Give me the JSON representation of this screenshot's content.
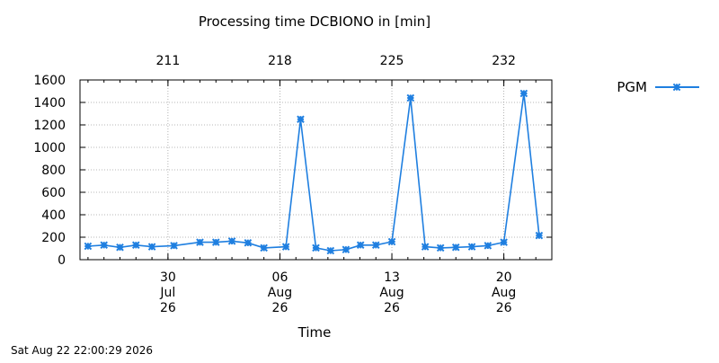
{
  "chart_data": {
    "type": "line",
    "title": "Processing time DCBIONO in [min]",
    "xlabel": "Time",
    "ylabel": "",
    "ylim": [
      0,
      1600
    ],
    "yticks": [
      0,
      200,
      400,
      600,
      800,
      1000,
      1200,
      1400,
      1600
    ],
    "xlim": [
      "2026-07-24T12:00",
      "2026-08-23T00:00"
    ],
    "x_ticks": [
      {
        "date": "2026-07-30",
        "lines": [
          "30",
          "Jul",
          "26"
        ]
      },
      {
        "date": "2026-08-06",
        "lines": [
          "06",
          "Aug",
          "26"
        ]
      },
      {
        "date": "2026-08-13",
        "lines": [
          "13",
          "Aug",
          "26"
        ]
      },
      {
        "date": "2026-08-20",
        "lines": [
          "20",
          "Aug",
          "26"
        ]
      }
    ],
    "top_axis_ticks": [
      {
        "date": "2026-07-30",
        "label": "211"
      },
      {
        "date": "2026-08-06",
        "label": "218"
      },
      {
        "date": "2026-08-13",
        "label": "225"
      },
      {
        "date": "2026-08-20",
        "label": "232"
      }
    ],
    "grid": true,
    "legend_position": "right",
    "series": [
      {
        "name": "PGM",
        "color": "#1f7fe0",
        "marker": "star",
        "points": [
          {
            "x": "2026-07-25T00:00",
            "y": 120
          },
          {
            "x": "2026-07-26T00:00",
            "y": 130
          },
          {
            "x": "2026-07-27T00:00",
            "y": 110
          },
          {
            "x": "2026-07-28T00:00",
            "y": 130
          },
          {
            "x": "2026-07-29T00:00",
            "y": 115
          },
          {
            "x": "2026-07-30T09:00",
            "y": 125
          },
          {
            "x": "2026-08-01T00:00",
            "y": 155
          },
          {
            "x": "2026-08-02T00:00",
            "y": 155
          },
          {
            "x": "2026-08-03T00:00",
            "y": 165
          },
          {
            "x": "2026-08-04T00:00",
            "y": 150
          },
          {
            "x": "2026-08-05T00:00",
            "y": 105
          },
          {
            "x": "2026-08-06T09:00",
            "y": 115
          },
          {
            "x": "2026-08-07T07:00",
            "y": 1250
          },
          {
            "x": "2026-08-08T06:00",
            "y": 105
          },
          {
            "x": "2026-08-09T04:00",
            "y": 80
          },
          {
            "x": "2026-08-10T03:00",
            "y": 90
          },
          {
            "x": "2026-08-11T01:00",
            "y": 130
          },
          {
            "x": "2026-08-12T00:00",
            "y": 130
          },
          {
            "x": "2026-08-13T00:00",
            "y": 160
          },
          {
            "x": "2026-08-14T04:00",
            "y": 1440
          },
          {
            "x": "2026-08-15T02:00",
            "y": 115
          },
          {
            "x": "2026-08-16T01:00",
            "y": 105
          },
          {
            "x": "2026-08-17T00:00",
            "y": 110
          },
          {
            "x": "2026-08-18T00:00",
            "y": 115
          },
          {
            "x": "2026-08-19T00:00",
            "y": 125
          },
          {
            "x": "2026-08-20T00:00",
            "y": 155
          },
          {
            "x": "2026-08-21T06:00",
            "y": 1480
          },
          {
            "x": "2026-08-22T05:00",
            "y": 215
          }
        ]
      }
    ]
  },
  "footer": {
    "timestamp": "Sat Aug 22 22:00:29 2026"
  }
}
